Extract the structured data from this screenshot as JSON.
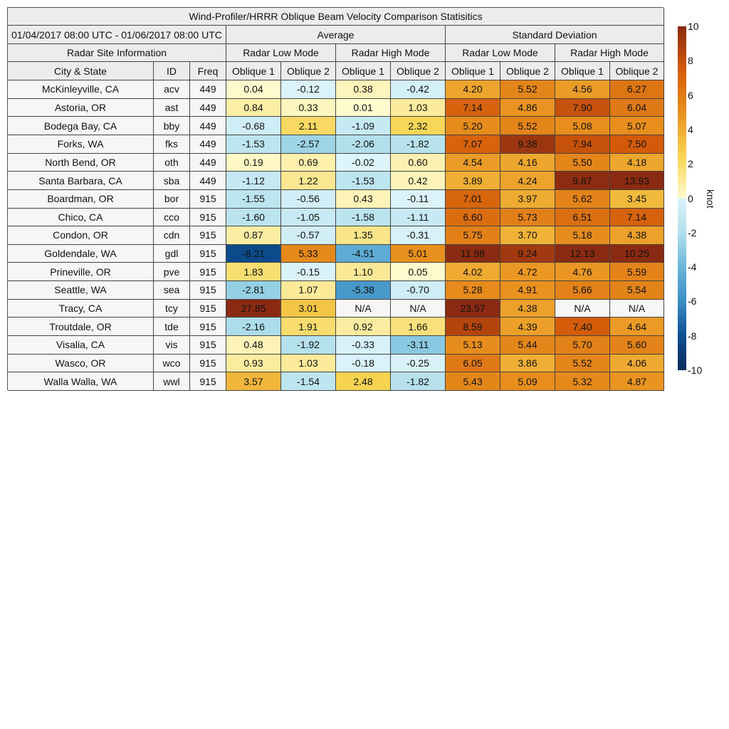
{
  "chart_data": {
    "type": "heatmap",
    "title": "Wind-Profiler/HRRR Oblique Beam Velocity Comparison Statisitics",
    "date_range": "01/04/2017 08:00 UTC - 01/06/2017 08:00 UTC",
    "site_info_label": "Radar Site Information",
    "groups": [
      "Average",
      "Standard Deviation"
    ],
    "modes": [
      "Radar Low Mode",
      "Radar High Mode",
      "Radar Low Mode",
      "Radar High Mode"
    ],
    "site_columns": [
      "City & State",
      "ID",
      "Freq"
    ],
    "value_columns": [
      "Oblique 1",
      "Oblique 2",
      "Oblique 1",
      "Oblique 2",
      "Oblique 1",
      "Oblique 2",
      "Oblique 1",
      "Oblique 2"
    ],
    "rows": [
      {
        "city": "McKinleyville, CA",
        "id": "acv",
        "freq": "449",
        "values": [
          "0.04",
          "-0.12",
          "0.38",
          "-0.42",
          "4.20",
          "5.52",
          "4.56",
          "6.27"
        ]
      },
      {
        "city": "Astoria, OR",
        "id": "ast",
        "freq": "449",
        "values": [
          "0.84",
          "0.33",
          "0.01",
          "1.03",
          "7.14",
          "4.86",
          "7.90",
          "6.04"
        ]
      },
      {
        "city": "Bodega Bay, CA",
        "id": "bby",
        "freq": "449",
        "values": [
          "-0.68",
          "2.11",
          "-1.09",
          "2.32",
          "5.20",
          "5.52",
          "5.08",
          "5.07"
        ]
      },
      {
        "city": "Forks, WA",
        "id": "fks",
        "freq": "449",
        "values": [
          "-1.53",
          "-2.57",
          "-2.06",
          "-1.82",
          "7.07",
          "9.38",
          "7.94",
          "7.50"
        ]
      },
      {
        "city": "North Bend, OR",
        "id": "oth",
        "freq": "449",
        "values": [
          "0.19",
          "0.69",
          "-0.02",
          "0.60",
          "4.54",
          "4.16",
          "5.50",
          "4.18"
        ]
      },
      {
        "city": "Santa Barbara, CA",
        "id": "sba",
        "freq": "449",
        "values": [
          "-1.12",
          "1.22",
          "-1.53",
          "0.42",
          "3.89",
          "4.24",
          "9.87",
          "13.93"
        ]
      },
      {
        "city": "Boardman, OR",
        "id": "bor",
        "freq": "915",
        "values": [
          "-1.55",
          "-0.56",
          "0.43",
          "-0.11",
          "7.01",
          "3.97",
          "5.62",
          "3.45"
        ]
      },
      {
        "city": "Chico, CA",
        "id": "cco",
        "freq": "915",
        "values": [
          "-1.60",
          "-1.05",
          "-1.58",
          "-1.11",
          "6.60",
          "5.73",
          "6.51",
          "7.14"
        ]
      },
      {
        "city": "Condon, OR",
        "id": "cdn",
        "freq": "915",
        "values": [
          "0.87",
          "-0.57",
          "1.35",
          "-0.31",
          "5.75",
          "3.70",
          "5.18",
          "4.38"
        ]
      },
      {
        "city": "Goldendale, WA",
        "id": "gdl",
        "freq": "915",
        "values": [
          "-8.21",
          "5.33",
          "-4.51",
          "5.01",
          "11.98",
          "9.24",
          "12.13",
          "10.25"
        ]
      },
      {
        "city": "Prineville, OR",
        "id": "pve",
        "freq": "915",
        "values": [
          "1.83",
          "-0.15",
          "1.10",
          "0.05",
          "4.02",
          "4.72",
          "4.76",
          "5.59"
        ]
      },
      {
        "city": "Seattle, WA",
        "id": "sea",
        "freq": "915",
        "values": [
          "-2.81",
          "1.07",
          "-5.38",
          "-0.70",
          "5.28",
          "4.91",
          "5.66",
          "5.54"
        ]
      },
      {
        "city": "Tracy, CA",
        "id": "tcy",
        "freq": "915",
        "values": [
          "27.85",
          "3.01",
          "N/A",
          "N/A",
          "23.57",
          "4.38",
          "N/A",
          "N/A"
        ]
      },
      {
        "city": "Troutdale, OR",
        "id": "tde",
        "freq": "915",
        "values": [
          "-2.16",
          "1.91",
          "0.92",
          "1.66",
          "8.59",
          "4.39",
          "7.40",
          "4.64"
        ]
      },
      {
        "city": "Visalia, CA",
        "id": "vis",
        "freq": "915",
        "values": [
          "0.48",
          "-1.92",
          "-0.33",
          "-3.11",
          "5.13",
          "5.44",
          "5.70",
          "5.60"
        ]
      },
      {
        "city": "Wasco, OR",
        "id": "wco",
        "freq": "915",
        "values": [
          "0.93",
          "1.03",
          "-0.18",
          "-0.25",
          "6.05",
          "3.86",
          "5.52",
          "4.06"
        ]
      },
      {
        "city": "Walla Walla, WA",
        "id": "wwl",
        "freq": "915",
        "values": [
          "3.57",
          "-1.54",
          "2.48",
          "-1.82",
          "5.43",
          "5.09",
          "5.32",
          "4.87"
        ]
      }
    ],
    "colorbar": {
      "label": "knot",
      "range": [
        -10,
        10
      ],
      "ticks": [
        "10",
        "8",
        "6",
        "4",
        "2",
        "0",
        "-2",
        "-4",
        "-6",
        "-8",
        "-10"
      ],
      "colors_positive": [
        "#fffbd0",
        "#f7d34f",
        "#e8901e",
        "#d35a08",
        "#8a2a12"
      ],
      "colors_negative": [
        "#ddf4fc",
        "#b3e0ec",
        "#6ab6d8",
        "#3a8cc4",
        "#0d4f91",
        "#082a5a"
      ],
      "na_color": "#f6f6f6"
    }
  }
}
